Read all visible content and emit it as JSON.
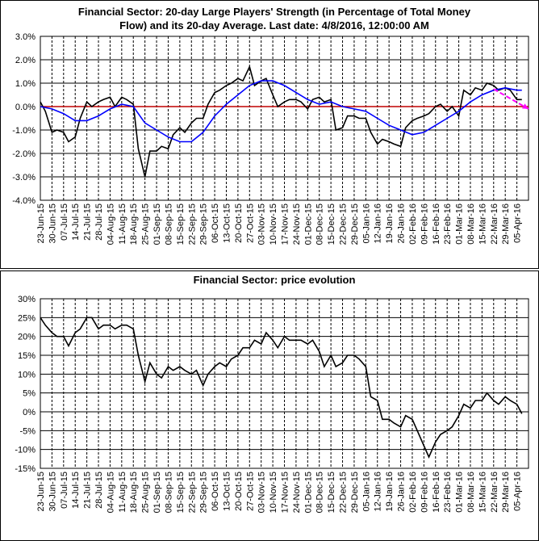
{
  "chart_data": [
    {
      "type": "line",
      "title": [
        "Financial Sector: 20-day Large Players' Strength (in Percentage of Total Money",
        "Flow) and its 20-day Average. Last date: 4/8/2016, 12:00:00 AM"
      ],
      "x": [
        "2015-06-23",
        "2015-06-26",
        "2015-06-30",
        "2015-07-03",
        "2015-07-07",
        "2015-07-10",
        "2015-07-14",
        "2015-07-17",
        "2015-07-21",
        "2015-07-24",
        "2015-07-28",
        "2015-07-31",
        "2015-08-04",
        "2015-08-07",
        "2015-08-11",
        "2015-08-14",
        "2015-08-18",
        "2015-08-21",
        "2015-08-25",
        "2015-08-28",
        "2015-09-01",
        "2015-09-04",
        "2015-09-08",
        "2015-09-11",
        "2015-09-15",
        "2015-09-18",
        "2015-09-22",
        "2015-09-25",
        "2015-09-29",
        "2015-10-02",
        "2015-10-06",
        "2015-10-09",
        "2015-10-13",
        "2015-10-16",
        "2015-10-20",
        "2015-10-23",
        "2015-10-27",
        "2015-10-30",
        "2015-11-03",
        "2015-11-06",
        "2015-11-10",
        "2015-11-13",
        "2015-11-17",
        "2015-11-20",
        "2015-11-24",
        "2015-11-27",
        "2015-12-01",
        "2015-12-04",
        "2015-12-08",
        "2015-12-11",
        "2015-12-15",
        "2015-12-18",
        "2015-12-22",
        "2015-12-25",
        "2015-12-29",
        "2016-01-01",
        "2016-01-05",
        "2016-01-08",
        "2016-01-12",
        "2016-01-15",
        "2016-01-19",
        "2016-01-22",
        "2016-01-26",
        "2016-01-29",
        "2016-02-02",
        "2016-02-05",
        "2016-02-09",
        "2016-02-12",
        "2016-02-16",
        "2016-02-19",
        "2016-02-23",
        "2016-02-26",
        "2016-03-01",
        "2016-03-04",
        "2016-03-08",
        "2016-03-11",
        "2016-03-15",
        "2016-03-18",
        "2016-03-22",
        "2016-03-25",
        "2016-03-29",
        "2016-04-01",
        "2016-04-05",
        "2016-04-08"
      ],
      "series": [
        {
          "color": "#000000",
          "values": [
            0.2,
            -0.2,
            -1.1,
            -1.0,
            -1.1,
            -1.5,
            -1.3,
            -0.5,
            0.2,
            0.0,
            0.2,
            0.3,
            0.4,
            0.0,
            0.4,
            0.3,
            0.1,
            -1.8,
            -3.0,
            -1.9,
            -1.9,
            -1.7,
            -1.8,
            -1.2,
            -0.9,
            -1.1,
            -0.7,
            -0.5,
            -0.5,
            0.1,
            0.6,
            0.7,
            0.9,
            1.0,
            1.2,
            1.1,
            1.7,
            0.9,
            1.1,
            1.2,
            0.5,
            0.0,
            0.2,
            0.3,
            0.3,
            0.2,
            -0.1,
            0.3,
            0.4,
            0.2,
            0.3,
            -1.0,
            -0.9,
            -0.4,
            -0.4,
            -0.5,
            -0.5,
            -1.1,
            -1.6,
            -1.4,
            -1.5,
            -1.6,
            -1.7,
            -0.9,
            -0.6,
            -0.5,
            -0.4,
            -0.3,
            0.0,
            0.1,
            -0.2,
            0.0,
            -0.4,
            0.7,
            0.5,
            0.8,
            0.7,
            1.0,
            0.9,
            0.7,
            0.8,
            0.7,
            0.3,
            0.3
          ]
        },
        {
          "color": "#0000ff",
          "x": [
            "2015-06-23",
            "2015-06-30",
            "2015-07-07",
            "2015-07-14",
            "2015-07-21",
            "2015-07-28",
            "2015-08-04",
            "2015-08-11",
            "2015-08-18",
            "2015-08-25",
            "2015-09-01",
            "2015-09-08",
            "2015-09-15",
            "2015-09-22",
            "2015-09-29",
            "2015-10-06",
            "2015-10-13",
            "2015-10-20",
            "2015-10-27",
            "2015-11-03",
            "2015-11-10",
            "2015-11-17",
            "2015-11-24",
            "2015-12-01",
            "2015-12-08",
            "2015-12-15",
            "2015-12-22",
            "2015-12-29",
            "2016-01-05",
            "2016-01-12",
            "2016-01-19",
            "2016-01-26",
            "2016-02-02",
            "2016-02-09",
            "2016-02-16",
            "2016-02-23",
            "2016-03-01",
            "2016-03-08",
            "2016-03-15",
            "2016-03-22",
            "2016-03-29",
            "2016-04-05",
            "2016-04-08"
          ],
          "values": [
            0.0,
            -0.1,
            -0.3,
            -0.6,
            -0.6,
            -0.4,
            -0.1,
            0.1,
            0.0,
            -0.7,
            -1.0,
            -1.3,
            -1.5,
            -1.5,
            -1.1,
            -0.4,
            0.1,
            0.5,
            0.9,
            1.1,
            1.1,
            0.9,
            0.6,
            0.3,
            0.1,
            0.2,
            0.0,
            -0.1,
            -0.2,
            -0.5,
            -0.8,
            -1.0,
            -1.2,
            -1.1,
            -0.8,
            -0.5,
            -0.2,
            0.2,
            0.5,
            0.7,
            0.8,
            0.7,
            0.7
          ]
        }
      ],
      "reference_line": {
        "value": 0,
        "color": "#c00000"
      },
      "trend_arrow": {
        "x": [
          "2016-03-22",
          "2016-04-12"
        ],
        "values": [
          0.75,
          -0.1
        ],
        "color": "#ff00ff"
      },
      "xlim": [
        "2015-06-23",
        "2016-04-12"
      ],
      "ylim": [
        -4,
        3
      ],
      "yticks": [
        {
          "value": 3,
          "label": "3.0%"
        },
        {
          "value": 2,
          "label": "2.0%"
        },
        {
          "value": 1,
          "label": "1.0%"
        },
        {
          "value": 0,
          "label": "0.0%"
        },
        {
          "value": -1,
          "label": "-1.0%"
        },
        {
          "value": -2,
          "label": "-2.0%"
        },
        {
          "value": -3,
          "label": "-3.0%"
        },
        {
          "value": -4,
          "label": "-4.0%"
        }
      ],
      "xticks": [
        {
          "value": "2015-06-23",
          "label": "23-Jun-15"
        },
        {
          "value": "2015-06-30",
          "label": "30-Jun-15"
        },
        {
          "value": "2015-07-07",
          "label": "07-Jul-15"
        },
        {
          "value": "2015-07-14",
          "label": "14-Jul-15"
        },
        {
          "value": "2015-07-21",
          "label": "21-Jul-15"
        },
        {
          "value": "2015-07-28",
          "label": "28-Jul-15"
        },
        {
          "value": "2015-08-04",
          "label": "04-Aug-15"
        },
        {
          "value": "2015-08-11",
          "label": "11-Aug-15"
        },
        {
          "value": "2015-08-18",
          "label": "18-Aug-15"
        },
        {
          "value": "2015-08-25",
          "label": "25-Aug-15"
        },
        {
          "value": "2015-09-01",
          "label": "01-Sep-15"
        },
        {
          "value": "2015-09-08",
          "label": "08-Sep-15"
        },
        {
          "value": "2015-09-15",
          "label": "15-Sep-15"
        },
        {
          "value": "2015-09-22",
          "label": "22-Sep-15"
        },
        {
          "value": "2015-09-29",
          "label": "29-Sep-15"
        },
        {
          "value": "2015-10-06",
          "label": "06-Oct-15"
        },
        {
          "value": "2015-10-13",
          "label": "13-Oct-15"
        },
        {
          "value": "2015-10-20",
          "label": "20-Oct-15"
        },
        {
          "value": "2015-10-27",
          "label": "27-Oct-15"
        },
        {
          "value": "2015-11-03",
          "label": "03-Nov-15"
        },
        {
          "value": "2015-11-10",
          "label": "10-Nov-15"
        },
        {
          "value": "2015-11-17",
          "label": "17-Nov-15"
        },
        {
          "value": "2015-11-24",
          "label": "24-Nov-15"
        },
        {
          "value": "2015-12-01",
          "label": "01-Dec-15"
        },
        {
          "value": "2015-12-08",
          "label": "08-Dec-15"
        },
        {
          "value": "2015-12-15",
          "label": "15-Dec-15"
        },
        {
          "value": "2015-12-22",
          "label": "22-Dec-15"
        },
        {
          "value": "2015-12-29",
          "label": "29-Dec-15"
        },
        {
          "value": "2016-01-05",
          "label": "05-Jan-16"
        },
        {
          "value": "2016-01-12",
          "label": "12-Jan-16"
        },
        {
          "value": "2016-01-19",
          "label": "19-Jan-16"
        },
        {
          "value": "2016-01-26",
          "label": "26-Jan-16"
        },
        {
          "value": "2016-02-02",
          "label": "02-Feb-16"
        },
        {
          "value": "2016-02-09",
          "label": "09-Feb-16"
        },
        {
          "value": "2016-02-16",
          "label": "16-Feb-16"
        },
        {
          "value": "2016-02-23",
          "label": "23-Feb-16"
        },
        {
          "value": "2016-03-01",
          "label": "01-Mar-16"
        },
        {
          "value": "2016-03-08",
          "label": "08-Mar-16"
        },
        {
          "value": "2016-03-15",
          "label": "15-Mar-16"
        },
        {
          "value": "2016-03-22",
          "label": "22-Mar-16"
        },
        {
          "value": "2016-03-29",
          "label": "29-Mar-16"
        },
        {
          "value": "2016-04-05",
          "label": "05-Apr-16"
        }
      ],
      "grid": true
    },
    {
      "type": "line",
      "title": [
        "Financial Sector: price evolution"
      ],
      "x": [
        "2015-06-23",
        "2015-06-26",
        "2015-06-30",
        "2015-07-03",
        "2015-07-07",
        "2015-07-10",
        "2015-07-14",
        "2015-07-17",
        "2015-07-21",
        "2015-07-24",
        "2015-07-28",
        "2015-07-31",
        "2015-08-04",
        "2015-08-07",
        "2015-08-11",
        "2015-08-14",
        "2015-08-18",
        "2015-08-21",
        "2015-08-25",
        "2015-08-28",
        "2015-09-01",
        "2015-09-04",
        "2015-09-08",
        "2015-09-11",
        "2015-09-15",
        "2015-09-18",
        "2015-09-22",
        "2015-09-25",
        "2015-09-29",
        "2015-10-02",
        "2015-10-06",
        "2015-10-09",
        "2015-10-13",
        "2015-10-16",
        "2015-10-20",
        "2015-10-23",
        "2015-10-27",
        "2015-10-30",
        "2015-11-03",
        "2015-11-06",
        "2015-11-10",
        "2015-11-13",
        "2015-11-17",
        "2015-11-20",
        "2015-11-24",
        "2015-11-27",
        "2015-12-01",
        "2015-12-04",
        "2015-12-08",
        "2015-12-11",
        "2015-12-15",
        "2015-12-18",
        "2015-12-22",
        "2015-12-25",
        "2015-12-29",
        "2016-01-01",
        "2016-01-05",
        "2016-01-08",
        "2016-01-12",
        "2016-01-15",
        "2016-01-19",
        "2016-01-22",
        "2016-01-26",
        "2016-01-29",
        "2016-02-02",
        "2016-02-05",
        "2016-02-09",
        "2016-02-12",
        "2016-02-16",
        "2016-02-19",
        "2016-02-23",
        "2016-02-26",
        "2016-03-01",
        "2016-03-04",
        "2016-03-08",
        "2016-03-11",
        "2016-03-15",
        "2016-03-18",
        "2016-03-22",
        "2016-03-25",
        "2016-03-29",
        "2016-04-01",
        "2016-04-05",
        "2016-04-08"
      ],
      "series": [
        {
          "color": "#000000",
          "values": [
            25,
            23,
            21,
            20,
            20,
            17.5,
            21,
            22,
            25,
            25,
            22,
            23,
            23,
            22,
            23,
            23,
            22,
            15,
            8,
            13,
            10,
            9,
            12,
            11,
            12,
            11,
            10,
            11,
            7,
            10,
            12,
            13,
            12,
            14,
            15,
            17,
            17,
            19,
            18,
            21,
            19,
            17,
            20,
            19,
            19,
            19,
            18,
            19,
            16,
            12,
            15,
            12,
            13,
            15,
            15,
            14,
            12,
            4,
            3,
            -2,
            -2,
            -3,
            -4,
            -1,
            -2,
            -5,
            -9,
            -12,
            -8,
            -6,
            -5,
            -4,
            -1,
            2,
            1,
            3,
            3,
            5,
            3,
            2,
            4,
            3,
            2,
            -0.5
          ]
        }
      ],
      "xlim": [
        "2015-06-23",
        "2016-04-12"
      ],
      "ylim": [
        -15,
        30
      ],
      "yticks": [
        {
          "value": 30,
          "label": "30%"
        },
        {
          "value": 25,
          "label": "25%"
        },
        {
          "value": 20,
          "label": "20%"
        },
        {
          "value": 15,
          "label": "15%"
        },
        {
          "value": 10,
          "label": "10%"
        },
        {
          "value": 5,
          "label": "5%"
        },
        {
          "value": 0,
          "label": "0%"
        },
        {
          "value": -5,
          "label": "-5%"
        },
        {
          "value": -10,
          "label": "-10%"
        },
        {
          "value": -15,
          "label": "-15%"
        }
      ],
      "xticks": [
        {
          "value": "2015-06-23",
          "label": "23-Jun-15"
        },
        {
          "value": "2015-06-30",
          "label": "30-Jun-15"
        },
        {
          "value": "2015-07-07",
          "label": "07-Jul-15"
        },
        {
          "value": "2015-07-14",
          "label": "14-Jul-15"
        },
        {
          "value": "2015-07-21",
          "label": "21-Jul-15"
        },
        {
          "value": "2015-07-28",
          "label": "28-Jul-15"
        },
        {
          "value": "2015-08-04",
          "label": "04-Aug-15"
        },
        {
          "value": "2015-08-11",
          "label": "11-Aug-15"
        },
        {
          "value": "2015-08-18",
          "label": "18-Aug-15"
        },
        {
          "value": "2015-08-25",
          "label": "25-Aug-15"
        },
        {
          "value": "2015-09-01",
          "label": "01-Sep-15"
        },
        {
          "value": "2015-09-08",
          "label": "08-Sep-15"
        },
        {
          "value": "2015-09-15",
          "label": "15-Sep-15"
        },
        {
          "value": "2015-09-22",
          "label": "22-Sep-15"
        },
        {
          "value": "2015-09-29",
          "label": "29-Sep-15"
        },
        {
          "value": "2015-10-06",
          "label": "06-Oct-15"
        },
        {
          "value": "2015-10-13",
          "label": "13-Oct-15"
        },
        {
          "value": "2015-10-20",
          "label": "20-Oct-15"
        },
        {
          "value": "2015-10-27",
          "label": "27-Oct-15"
        },
        {
          "value": "2015-11-03",
          "label": "03-Nov-15"
        },
        {
          "value": "2015-11-10",
          "label": "10-Nov-15"
        },
        {
          "value": "2015-11-17",
          "label": "17-Nov-15"
        },
        {
          "value": "2015-11-24",
          "label": "24-Nov-15"
        },
        {
          "value": "2015-12-01",
          "label": "01-Dec-15"
        },
        {
          "value": "2015-12-08",
          "label": "08-Dec-15"
        },
        {
          "value": "2015-12-15",
          "label": "15-Dec-15"
        },
        {
          "value": "2015-12-22",
          "label": "22-Dec-15"
        },
        {
          "value": "2015-12-29",
          "label": "29-Dec-15"
        },
        {
          "value": "2016-01-05",
          "label": "05-Jan-16"
        },
        {
          "value": "2016-01-12",
          "label": "12-Jan-16"
        },
        {
          "value": "2016-01-19",
          "label": "19-Jan-16"
        },
        {
          "value": "2016-01-26",
          "label": "26-Jan-16"
        },
        {
          "value": "2016-02-02",
          "label": "02-Feb-16"
        },
        {
          "value": "2016-02-09",
          "label": "09-Feb-16"
        },
        {
          "value": "2016-02-16",
          "label": "16-Feb-16"
        },
        {
          "value": "2016-02-23",
          "label": "23-Feb-16"
        },
        {
          "value": "2016-03-01",
          "label": "01-Mar-16"
        },
        {
          "value": "2016-03-08",
          "label": "08-Mar-16"
        },
        {
          "value": "2016-03-15",
          "label": "15-Mar-16"
        },
        {
          "value": "2016-03-22",
          "label": "22-Mar-16"
        },
        {
          "value": "2016-03-29",
          "label": "29-Mar-16"
        },
        {
          "value": "2016-04-05",
          "label": "05-Apr-16"
        }
      ],
      "grid": true
    }
  ]
}
